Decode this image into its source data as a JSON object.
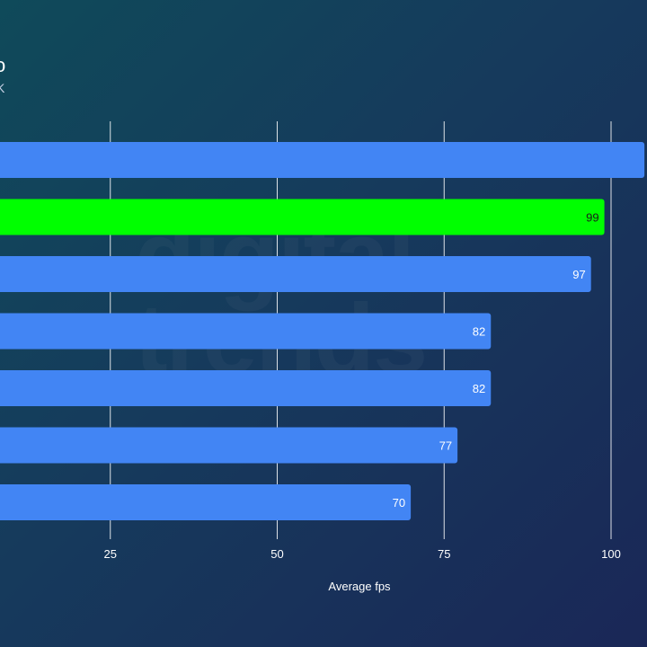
{
  "header": {
    "title_fragment": "o",
    "subtitle_fragment": "K"
  },
  "watermark_text": "digital trends",
  "colors": {
    "bar": "#4285f4",
    "highlight": "#00ff00",
    "grid": "#ffffff"
  },
  "chart_data": {
    "type": "bar",
    "orientation": "horizontal",
    "categories": [
      "",
      "",
      "",
      "",
      "",
      "",
      ""
    ],
    "values": [
      105,
      99,
      97,
      82,
      82,
      77,
      70
    ],
    "value_labels": [
      "",
      "99",
      "97",
      "82",
      "82",
      "77",
      "70"
    ],
    "highlight_index": 1,
    "xlim": [
      0,
      100
    ],
    "x_ticks": [
      25,
      50,
      75,
      100
    ],
    "xlabel": "Average fps",
    "grid": true
  }
}
